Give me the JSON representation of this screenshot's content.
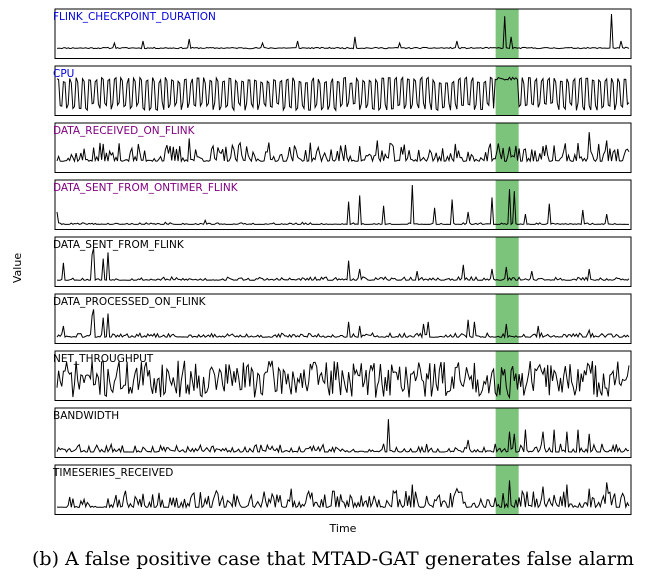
{
  "chart_data": {
    "type": "line",
    "xlabel": "Time",
    "ylabel": "Value",
    "grid": false,
    "highlight": {
      "color": "#7cc47c",
      "x_range": [
        0.765,
        0.805
      ]
    },
    "series": [
      {
        "name": "FLINK_CHECKPOINT_DURATION",
        "color": "#0000dd",
        "style": "flat_spikes",
        "seed": 11,
        "base": 0.18,
        "noise": 0.03,
        "spikes": [
          [
            0.1,
            0.3
          ],
          [
            0.15,
            0.35
          ],
          [
            0.23,
            0.4
          ],
          [
            0.36,
            0.3
          ],
          [
            0.42,
            0.35
          ],
          [
            0.52,
            0.45
          ],
          [
            0.6,
            0.3
          ],
          [
            0.7,
            0.35
          ],
          [
            0.783,
            0.95
          ],
          [
            0.795,
            0.45
          ],
          [
            0.97,
            1.0
          ],
          [
            0.985,
            0.35
          ],
          [
            0.995,
            0.2
          ]
        ]
      },
      {
        "name": "CPU",
        "color": "#0000dd",
        "style": "oscillate",
        "seed": 23,
        "period": 0.006,
        "amp": 0.85,
        "lowpoint": 0.05,
        "anomaly_after": 0.765,
        "anomaly_level": 0.85
      },
      {
        "name": "DATA_RECEIVED_ON_FLINK",
        "color": "#800080",
        "style": "noisy",
        "seed": 37,
        "base": 0.2,
        "noise": 0.45,
        "spikes": [
          [
            0.23,
            0.75
          ],
          [
            0.37,
            0.65
          ],
          [
            0.56,
            0.7
          ],
          [
            0.79,
            0.55
          ],
          [
            0.93,
            0.9
          ],
          [
            0.96,
            0.7
          ]
        ]
      },
      {
        "name": "DATA_SENT_FROM_ONTIMER_FLINK",
        "color": "#800080",
        "style": "spikes",
        "seed": 41,
        "base": 0.05,
        "noise": 0.04,
        "spikes": [
          [
            0.0,
            0.35
          ],
          [
            0.19,
            0.1
          ],
          [
            0.26,
            0.15
          ],
          [
            0.43,
            0.1
          ],
          [
            0.51,
            0.6
          ],
          [
            0.53,
            0.75
          ],
          [
            0.57,
            0.5
          ],
          [
            0.62,
            1.0
          ],
          [
            0.66,
            0.45
          ],
          [
            0.69,
            0.65
          ],
          [
            0.72,
            0.35
          ],
          [
            0.76,
            0.7
          ],
          [
            0.79,
            0.9
          ],
          [
            0.8,
            0.85
          ],
          [
            0.82,
            0.3
          ],
          [
            0.86,
            0.55
          ],
          [
            0.92,
            0.4
          ],
          [
            0.96,
            0.3
          ]
        ]
      },
      {
        "name": "DATA_SENT_FROM_FLINK",
        "color": "#000000",
        "style": "spikes",
        "seed": 53,
        "base": 0.08,
        "noise": 0.08,
        "spikes": [
          [
            0.01,
            0.5
          ],
          [
            0.06,
            0.7
          ],
          [
            0.065,
            0.85
          ],
          [
            0.08,
            0.6
          ],
          [
            0.09,
            0.75
          ],
          [
            0.51,
            0.55
          ],
          [
            0.53,
            0.35
          ],
          [
            0.63,
            0.3
          ],
          [
            0.71,
            0.45
          ],
          [
            0.76,
            0.35
          ],
          [
            0.785,
            0.4
          ],
          [
            0.83,
            0.3
          ],
          [
            0.93,
            0.35
          ]
        ]
      },
      {
        "name": "DATA_PROCESSED_ON_FLINK",
        "color": "#000000",
        "style": "spikes",
        "seed": 61,
        "base": 0.08,
        "noise": 0.1,
        "spikes": [
          [
            0.01,
            0.35
          ],
          [
            0.06,
            0.6
          ],
          [
            0.065,
            0.75
          ],
          [
            0.08,
            0.55
          ],
          [
            0.09,
            0.65
          ],
          [
            0.51,
            0.45
          ],
          [
            0.53,
            0.35
          ],
          [
            0.64,
            0.4
          ],
          [
            0.65,
            0.45
          ],
          [
            0.72,
            0.5
          ],
          [
            0.73,
            0.45
          ],
          [
            0.785,
            0.4
          ],
          [
            0.84,
            0.35
          ],
          [
            0.93,
            0.25
          ]
        ]
      },
      {
        "name": "NET_THROUGHPUT",
        "color": "#000000",
        "style": "noisy_dense",
        "seed": 71,
        "base": 0.45,
        "noise": 0.75
      },
      {
        "name": "BANDWIDTH",
        "color": "#000000",
        "style": "spikes",
        "seed": 83,
        "base": 0.06,
        "noise": 0.2,
        "spikes": [
          [
            0.58,
            0.85
          ],
          [
            0.72,
            0.35
          ],
          [
            0.79,
            0.55
          ],
          [
            0.8,
            0.5
          ],
          [
            0.82,
            0.6
          ],
          [
            0.85,
            0.55
          ],
          [
            0.87,
            0.6
          ],
          [
            0.89,
            0.55
          ],
          [
            0.91,
            0.6
          ],
          [
            0.93,
            0.5
          ]
        ]
      },
      {
        "name": "TIMESERIES_RECEIVED",
        "color": "#000000",
        "style": "spikes",
        "seed": 97,
        "base": 0.1,
        "noise": 0.4,
        "spikes": [
          [
            0.12,
            0.5
          ],
          [
            0.41,
            0.55
          ],
          [
            0.62,
            0.65
          ],
          [
            0.7,
            0.55
          ],
          [
            0.79,
            0.75
          ],
          [
            0.85,
            0.6
          ],
          [
            0.89,
            0.65
          ],
          [
            0.93,
            0.55
          ],
          [
            0.96,
            0.7
          ]
        ]
      }
    ]
  },
  "caption": "(b) A false positive case that MTAD-GAT generates false alarm"
}
